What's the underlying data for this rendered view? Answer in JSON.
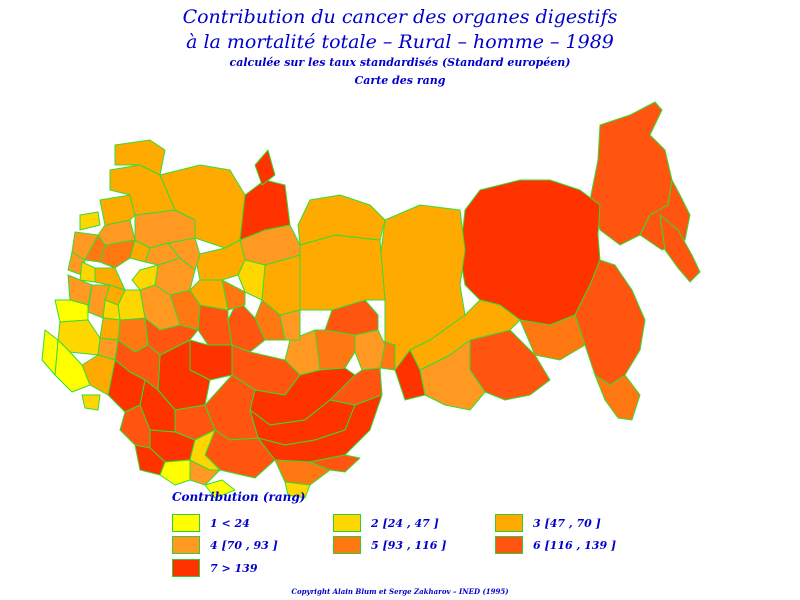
{
  "title_line1": "Contribution du cancer des organes digestifs",
  "title_line2": "à la mortalité totale  –  Rural  –  homme  –  1989",
  "subtitle": "calculée sur les taux standardisés (Standard européen)",
  "subtitle2": "Carte des rang",
  "legend": {
    "title": "Contribution  (rang)",
    "items": [
      {
        "label": "1  <  24",
        "color": "#ffff00"
      },
      {
        "label": "2 [24 ,  47 ]",
        "color": "#ffd700"
      },
      {
        "label": "3 [47 ,  70 ]",
        "color": "#ffaa00"
      },
      {
        "label": "4 [70 ,  93 ]",
        "color": "#ff9922"
      },
      {
        "label": "5 [93 ,  116 ]",
        "color": "#ff7711"
      },
      {
        "label": "6 [116 ,  139 ]",
        "color": "#ff5511"
      },
      {
        "label": "7  >  139",
        "color": "#ff3300"
      }
    ]
  },
  "border_color": "#33dd33",
  "copyright": "Copyright  Alain  Blum  et  Serge  Zakharov  –  INED  (1995)"
}
